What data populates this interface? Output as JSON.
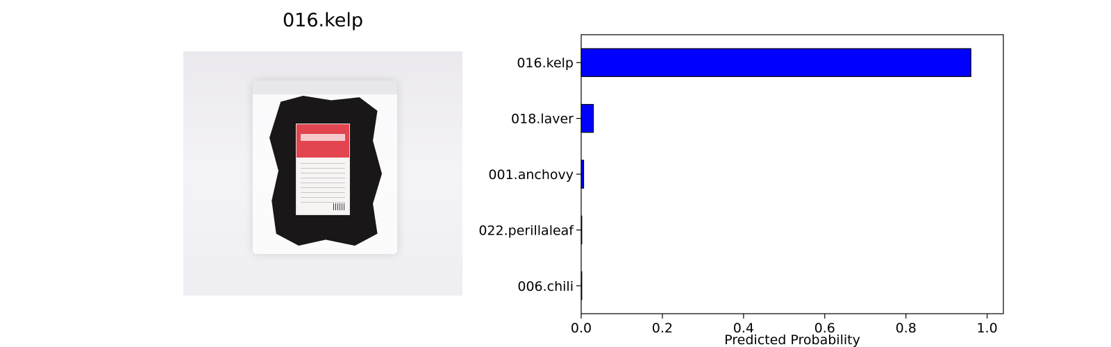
{
  "image_panel": {
    "title": "016.kelp"
  },
  "chart_data": {
    "type": "bar",
    "orientation": "horizontal",
    "categories": [
      "016.kelp",
      "018.laver",
      "001.anchovy",
      "022.perillaleaf",
      "006.chili"
    ],
    "values": [
      0.96,
      0.03,
      0.006,
      0.001,
      0.0005
    ],
    "xlabel": "Predicted Probability",
    "ylabel": "",
    "xlim": [
      0,
      1.0
    ],
    "xticks": [
      "0.0",
      "0.2",
      "0.4",
      "0.6",
      "0.8",
      "1.0"
    ],
    "bar_color": "#0000ff",
    "edge_color": "#000000",
    "grid": false
  }
}
